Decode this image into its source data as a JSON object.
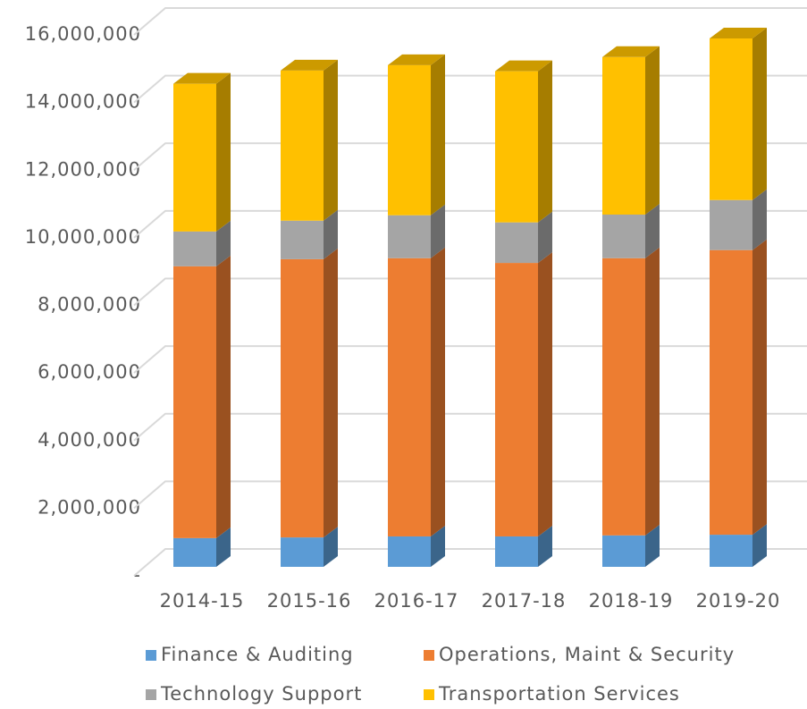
{
  "chart_data": {
    "type": "bar3d_stacked",
    "categories": [
      "2014-15",
      "2015-16",
      "2016-17",
      "2017-18",
      "2018-19",
      "2019-20"
    ],
    "series": [
      {
        "name": "Finance & Auditing",
        "color": "#5b9bd5",
        "values": [
          850000,
          870000,
          900000,
          900000,
          930000,
          950000
        ]
      },
      {
        "name": "Operations, Maint & Security",
        "color": "#ed7d31",
        "values": [
          8040000,
          8230000,
          8230000,
          8090000,
          8200000,
          8420000
        ]
      },
      {
        "name": "Technology Support",
        "color": "#a5a5a5",
        "values": [
          1030000,
          1140000,
          1270000,
          1200000,
          1290000,
          1480000
        ]
      },
      {
        "name": "Transportation Services",
        "color": "#ffc000",
        "values": [
          4370000,
          4440000,
          4440000,
          4470000,
          4660000,
          4780000
        ]
      }
    ],
    "ylim": [
      0,
      16000000
    ],
    "yticks": [
      {
        "value": 0,
        "label": "-"
      },
      {
        "value": 2000000,
        "label": "2,000,000"
      },
      {
        "value": 4000000,
        "label": "4,000,000"
      },
      {
        "value": 6000000,
        "label": "6,000,000"
      },
      {
        "value": 8000000,
        "label": "8,000,000"
      },
      {
        "value": 10000000,
        "label": "10,000,000"
      },
      {
        "value": 12000000,
        "label": "12,000,000"
      },
      {
        "value": 14000000,
        "label": "14,000,000"
      },
      {
        "value": 16000000,
        "label": "16,000,000"
      }
    ],
    "grid": true,
    "legend": "bottom"
  }
}
